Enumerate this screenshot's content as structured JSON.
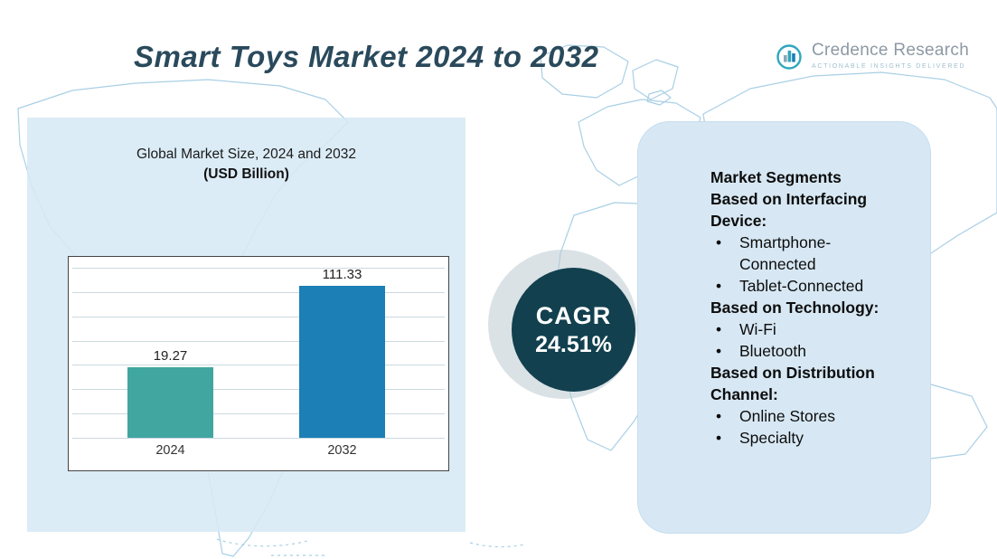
{
  "title": "Smart Toys Market 2024 to 2032",
  "logo": {
    "name": "Credence Research",
    "tagline": "Actionable Insights Delivered",
    "icon": "bar-chart-circle-icon"
  },
  "chart_panel": {
    "title_line1": "Global Market Size, 2024 and 2032",
    "title_line2": "(USD Billion)"
  },
  "chart_data": {
    "type": "bar",
    "title": "Global Market Size, 2024 and 2032 (USD Billion)",
    "categories": [
      "2024",
      "2032"
    ],
    "values": [
      19.27,
      111.33
    ],
    "data_labels": [
      "19.27",
      "111.33"
    ],
    "xlabel": "",
    "ylabel": "",
    "ylim": [
      0,
      130
    ],
    "grid": true,
    "legend": "none",
    "not_to_scale": true,
    "bar_heights_pct": [
      39,
      84
    ],
    "bar_colors": [
      "#41a5a0",
      "#1c7fb5"
    ]
  },
  "cagr_badge": {
    "label": "CAGR",
    "value": "24.51%"
  },
  "segments_panel": {
    "heading": "Market Segments",
    "bullet": "•",
    "sections": [
      {
        "title": "Based on Interfacing Device:",
        "items": [
          "Smartphone-Connected",
          "Tablet-Connected"
        ]
      },
      {
        "title": "Based on Technology:",
        "items": [
          "Wi-Fi",
          "Bluetooth"
        ]
      },
      {
        "title": "Based on Distribution Channel:",
        "items": [
          "Online Stores",
          "Specialty"
        ]
      }
    ]
  },
  "colors": {
    "title_text": "#2a4a5c",
    "cagr_circle": "#12404f",
    "panel_bg": "#d7e8f4",
    "map_stroke": "#a9cfe5",
    "bar_2024": "#41a5a0",
    "bar_2032": "#1c7fb5"
  }
}
